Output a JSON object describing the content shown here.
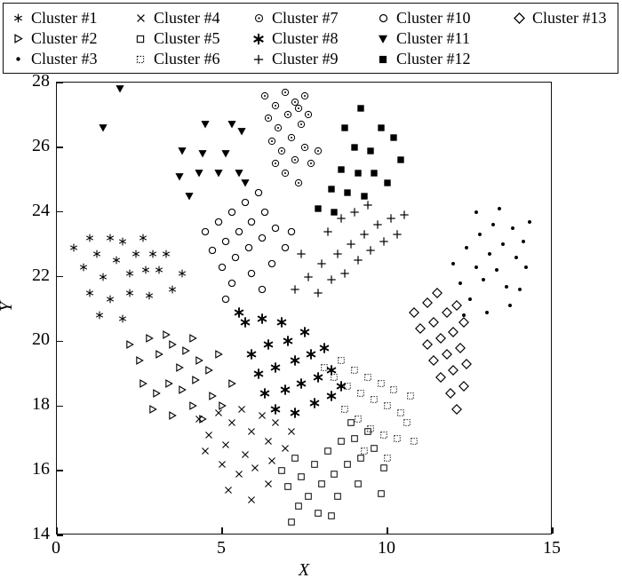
{
  "chart_data": {
    "type": "scatter",
    "title": "",
    "xlabel": "X",
    "ylabel": "Y",
    "xlim": [
      0,
      15
    ],
    "ylim": [
      14,
      28
    ],
    "xticks": [
      0,
      5,
      10,
      15
    ],
    "yticks": [
      14,
      16,
      18,
      20,
      22,
      24,
      26,
      28
    ],
    "grid": false,
    "legend_position": "top",
    "marker_color": "#000000",
    "legend_order": [
      1,
      4,
      7,
      10,
      13,
      2,
      5,
      8,
      11,
      null,
      3,
      6,
      9,
      12,
      null
    ],
    "series": [
      {
        "name": "Cluster #1",
        "marker": "star6",
        "points": [
          [
            0.5,
            22.9
          ],
          [
            0.8,
            22.3
          ],
          [
            1.0,
            23.2
          ],
          [
            1.2,
            22.7
          ],
          [
            1.4,
            22.0
          ],
          [
            1.6,
            23.2
          ],
          [
            1.8,
            22.5
          ],
          [
            2.0,
            23.1
          ],
          [
            2.2,
            22.1
          ],
          [
            2.4,
            22.7
          ],
          [
            2.6,
            23.2
          ],
          [
            2.7,
            22.2
          ],
          [
            2.9,
            22.7
          ],
          [
            1.0,
            21.5
          ],
          [
            1.6,
            21.3
          ],
          [
            2.2,
            21.5
          ],
          [
            3.1,
            22.2
          ],
          [
            3.3,
            22.7
          ],
          [
            1.3,
            20.8
          ],
          [
            2.0,
            20.7
          ],
          [
            2.8,
            21.4
          ],
          [
            3.5,
            21.6
          ],
          [
            3.8,
            22.1
          ]
        ]
      },
      {
        "name": "Cluster #2",
        "marker": "triangle-right",
        "points": [
          [
            2.2,
            19.9
          ],
          [
            2.5,
            19.4
          ],
          [
            2.8,
            20.1
          ],
          [
            3.1,
            19.6
          ],
          [
            3.3,
            20.2
          ],
          [
            3.5,
            19.9
          ],
          [
            3.7,
            19.2
          ],
          [
            3.9,
            19.7
          ],
          [
            4.1,
            20.1
          ],
          [
            4.3,
            19.4
          ],
          [
            2.6,
            18.7
          ],
          [
            3.0,
            18.4
          ],
          [
            3.4,
            18.7
          ],
          [
            3.8,
            18.5
          ],
          [
            4.2,
            18.8
          ],
          [
            4.6,
            19.1
          ],
          [
            4.9,
            19.6
          ],
          [
            2.9,
            17.9
          ],
          [
            3.5,
            17.7
          ],
          [
            4.1,
            18.0
          ],
          [
            4.7,
            18.3
          ],
          [
            5.3,
            18.7
          ],
          [
            4.4,
            17.6
          ],
          [
            5.0,
            18.0
          ]
        ]
      },
      {
        "name": "Cluster #3",
        "marker": "dot",
        "points": [
          [
            12.0,
            22.4
          ],
          [
            12.2,
            21.8
          ],
          [
            12.4,
            22.9
          ],
          [
            12.5,
            21.3
          ],
          [
            12.7,
            22.3
          ],
          [
            12.8,
            23.3
          ],
          [
            12.9,
            21.9
          ],
          [
            13.1,
            22.7
          ],
          [
            13.2,
            23.6
          ],
          [
            13.3,
            22.2
          ],
          [
            13.5,
            23.0
          ],
          [
            13.6,
            21.7
          ],
          [
            13.8,
            23.5
          ],
          [
            13.9,
            22.6
          ],
          [
            14.1,
            23.1
          ],
          [
            14.2,
            22.3
          ],
          [
            12.3,
            20.8
          ],
          [
            13.0,
            20.9
          ],
          [
            13.7,
            21.1
          ],
          [
            14.3,
            23.7
          ],
          [
            12.7,
            24.0
          ],
          [
            13.4,
            24.1
          ],
          [
            14.0,
            21.6
          ]
        ]
      },
      {
        "name": "Cluster #4",
        "marker": "cross",
        "points": [
          [
            4.3,
            17.6
          ],
          [
            4.6,
            17.1
          ],
          [
            4.9,
            17.8
          ],
          [
            5.1,
            16.8
          ],
          [
            5.3,
            17.5
          ],
          [
            5.6,
            17.9
          ],
          [
            5.7,
            16.5
          ],
          [
            5.9,
            17.2
          ],
          [
            6.2,
            17.7
          ],
          [
            6.4,
            16.9
          ],
          [
            6.6,
            17.5
          ],
          [
            5.0,
            16.2
          ],
          [
            5.5,
            15.9
          ],
          [
            6.0,
            16.1
          ],
          [
            6.5,
            16.3
          ],
          [
            5.2,
            15.4
          ],
          [
            5.9,
            15.1
          ],
          [
            6.4,
            15.6
          ],
          [
            6.9,
            16.7
          ],
          [
            7.1,
            17.2
          ],
          [
            4.5,
            16.6
          ]
        ]
      },
      {
        "name": "Cluster #5",
        "marker": "square-open",
        "points": [
          [
            6.8,
            16.0
          ],
          [
            7.0,
            15.5
          ],
          [
            7.2,
            16.4
          ],
          [
            7.4,
            15.8
          ],
          [
            7.6,
            15.2
          ],
          [
            7.8,
            16.2
          ],
          [
            8.0,
            15.6
          ],
          [
            8.2,
            16.6
          ],
          [
            8.4,
            15.9
          ],
          [
            8.6,
            16.9
          ],
          [
            8.8,
            16.2
          ],
          [
            9.0,
            17.0
          ],
          [
            9.2,
            16.4
          ],
          [
            9.4,
            17.2
          ],
          [
            7.3,
            14.9
          ],
          [
            7.9,
            14.7
          ],
          [
            8.5,
            15.2
          ],
          [
            9.1,
            15.6
          ],
          [
            9.6,
            16.7
          ],
          [
            7.1,
            14.4
          ],
          [
            8.3,
            14.6
          ],
          [
            9.8,
            15.3
          ],
          [
            9.9,
            16.1
          ],
          [
            8.9,
            17.5
          ]
        ]
      },
      {
        "name": "Cluster #6",
        "marker": "square-dashed",
        "points": [
          [
            8.1,
            19.2
          ],
          [
            8.4,
            18.9
          ],
          [
            8.6,
            19.4
          ],
          [
            8.8,
            18.6
          ],
          [
            9.0,
            19.1
          ],
          [
            9.2,
            18.4
          ],
          [
            9.4,
            18.9
          ],
          [
            9.6,
            18.2
          ],
          [
            9.8,
            18.7
          ],
          [
            10.0,
            18.0
          ],
          [
            10.2,
            18.5
          ],
          [
            10.4,
            17.8
          ],
          [
            8.7,
            17.9
          ],
          [
            9.1,
            17.6
          ],
          [
            9.5,
            17.3
          ],
          [
            9.9,
            17.1
          ],
          [
            10.3,
            17.0
          ],
          [
            10.6,
            17.5
          ],
          [
            10.8,
            16.9
          ],
          [
            9.3,
            16.6
          ],
          [
            10.0,
            16.4
          ],
          [
            10.7,
            18.3
          ]
        ]
      },
      {
        "name": "Cluster #7",
        "marker": "circle-dot",
        "points": [
          [
            6.3,
            27.6
          ],
          [
            6.6,
            27.3
          ],
          [
            6.9,
            27.7
          ],
          [
            7.2,
            27.4
          ],
          [
            7.5,
            27.6
          ],
          [
            6.4,
            26.9
          ],
          [
            6.7,
            26.6
          ],
          [
            7.0,
            27.0
          ],
          [
            7.3,
            27.2
          ],
          [
            6.5,
            26.2
          ],
          [
            6.8,
            25.9
          ],
          [
            7.1,
            26.3
          ],
          [
            7.4,
            26.7
          ],
          [
            7.6,
            27.0
          ],
          [
            6.6,
            25.5
          ],
          [
            6.9,
            25.2
          ],
          [
            7.2,
            25.6
          ],
          [
            7.5,
            26.0
          ],
          [
            7.7,
            25.5
          ],
          [
            7.3,
            24.9
          ],
          [
            7.9,
            25.9
          ]
        ]
      },
      {
        "name": "Cluster #8",
        "marker": "asterisk",
        "points": [
          [
            5.7,
            20.6
          ],
          [
            6.2,
            20.7
          ],
          [
            6.8,
            20.6
          ],
          [
            5.9,
            19.6
          ],
          [
            6.4,
            19.9
          ],
          [
            7.0,
            20.0
          ],
          [
            7.5,
            20.3
          ],
          [
            6.1,
            19.0
          ],
          [
            6.6,
            19.2
          ],
          [
            7.2,
            19.4
          ],
          [
            7.7,
            19.6
          ],
          [
            8.1,
            19.8
          ],
          [
            6.3,
            18.4
          ],
          [
            6.9,
            18.5
          ],
          [
            7.4,
            18.7
          ],
          [
            7.9,
            18.9
          ],
          [
            8.3,
            19.1
          ],
          [
            6.6,
            17.9
          ],
          [
            7.2,
            17.8
          ],
          [
            7.8,
            18.1
          ],
          [
            8.3,
            18.3
          ],
          [
            8.6,
            18.6
          ],
          [
            5.5,
            20.9
          ]
        ]
      },
      {
        "name": "Cluster #9",
        "marker": "plus",
        "points": [
          [
            7.2,
            21.6
          ],
          [
            7.6,
            22.0
          ],
          [
            7.9,
            21.5
          ],
          [
            8.0,
            22.4
          ],
          [
            8.3,
            21.9
          ],
          [
            8.5,
            22.7
          ],
          [
            8.7,
            22.1
          ],
          [
            8.9,
            23.0
          ],
          [
            9.1,
            22.5
          ],
          [
            9.3,
            23.3
          ],
          [
            9.5,
            22.8
          ],
          [
            9.7,
            23.6
          ],
          [
            9.9,
            23.1
          ],
          [
            10.1,
            23.8
          ],
          [
            10.3,
            23.3
          ],
          [
            8.2,
            23.4
          ],
          [
            8.6,
            23.8
          ],
          [
            9.0,
            24.0
          ],
          [
            9.4,
            24.2
          ],
          [
            10.5,
            23.9
          ],
          [
            7.4,
            22.7
          ]
        ]
      },
      {
        "name": "Cluster #10",
        "marker": "circle-open",
        "points": [
          [
            4.5,
            23.4
          ],
          [
            4.9,
            23.7
          ],
          [
            5.3,
            24.0
          ],
          [
            5.7,
            24.3
          ],
          [
            6.1,
            24.6
          ],
          [
            4.7,
            22.8
          ],
          [
            5.1,
            23.1
          ],
          [
            5.5,
            23.4
          ],
          [
            5.9,
            23.7
          ],
          [
            6.3,
            24.0
          ],
          [
            5.0,
            22.3
          ],
          [
            5.4,
            22.6
          ],
          [
            5.8,
            22.9
          ],
          [
            6.2,
            23.2
          ],
          [
            6.6,
            23.5
          ],
          [
            5.3,
            21.8
          ],
          [
            5.9,
            22.1
          ],
          [
            6.5,
            22.4
          ],
          [
            6.9,
            22.9
          ],
          [
            7.1,
            23.4
          ],
          [
            5.1,
            21.3
          ],
          [
            6.2,
            21.6
          ]
        ]
      },
      {
        "name": "Cluster #11",
        "marker": "triangle-down-filled",
        "points": [
          [
            1.9,
            27.8
          ],
          [
            1.4,
            26.6
          ],
          [
            4.5,
            26.7
          ],
          [
            5.3,
            26.7
          ],
          [
            5.6,
            26.5
          ],
          [
            3.8,
            25.9
          ],
          [
            4.4,
            25.8
          ],
          [
            5.1,
            25.8
          ],
          [
            5.5,
            25.2
          ],
          [
            3.7,
            25.1
          ],
          [
            4.3,
            25.2
          ],
          [
            4.9,
            25.2
          ],
          [
            4.0,
            24.5
          ],
          [
            5.7,
            24.9
          ]
        ]
      },
      {
        "name": "Cluster #12",
        "marker": "square-filled",
        "points": [
          [
            9.2,
            27.2
          ],
          [
            8.7,
            26.6
          ],
          [
            9.8,
            26.6
          ],
          [
            10.2,
            26.3
          ],
          [
            9.0,
            26.0
          ],
          [
            9.5,
            25.9
          ],
          [
            10.4,
            25.6
          ],
          [
            8.6,
            25.3
          ],
          [
            9.1,
            25.2
          ],
          [
            9.6,
            25.2
          ],
          [
            8.3,
            24.7
          ],
          [
            8.8,
            24.6
          ],
          [
            9.3,
            24.5
          ],
          [
            7.9,
            24.1
          ],
          [
            8.4,
            24.0
          ],
          [
            10.0,
            24.9
          ]
        ]
      },
      {
        "name": "Cluster #13",
        "marker": "diamond-open",
        "points": [
          [
            10.8,
            20.9
          ],
          [
            11.2,
            21.2
          ],
          [
            11.5,
            21.5
          ],
          [
            11.0,
            20.4
          ],
          [
            11.4,
            20.6
          ],
          [
            11.8,
            20.9
          ],
          [
            12.1,
            21.1
          ],
          [
            11.2,
            19.9
          ],
          [
            11.6,
            20.1
          ],
          [
            12.0,
            20.3
          ],
          [
            12.3,
            20.6
          ],
          [
            11.4,
            19.4
          ],
          [
            11.8,
            19.6
          ],
          [
            12.2,
            19.8
          ],
          [
            11.6,
            18.9
          ],
          [
            12.0,
            19.1
          ],
          [
            12.4,
            19.3
          ],
          [
            11.9,
            18.4
          ],
          [
            12.3,
            18.6
          ],
          [
            12.1,
            17.9
          ]
        ]
      }
    ]
  }
}
